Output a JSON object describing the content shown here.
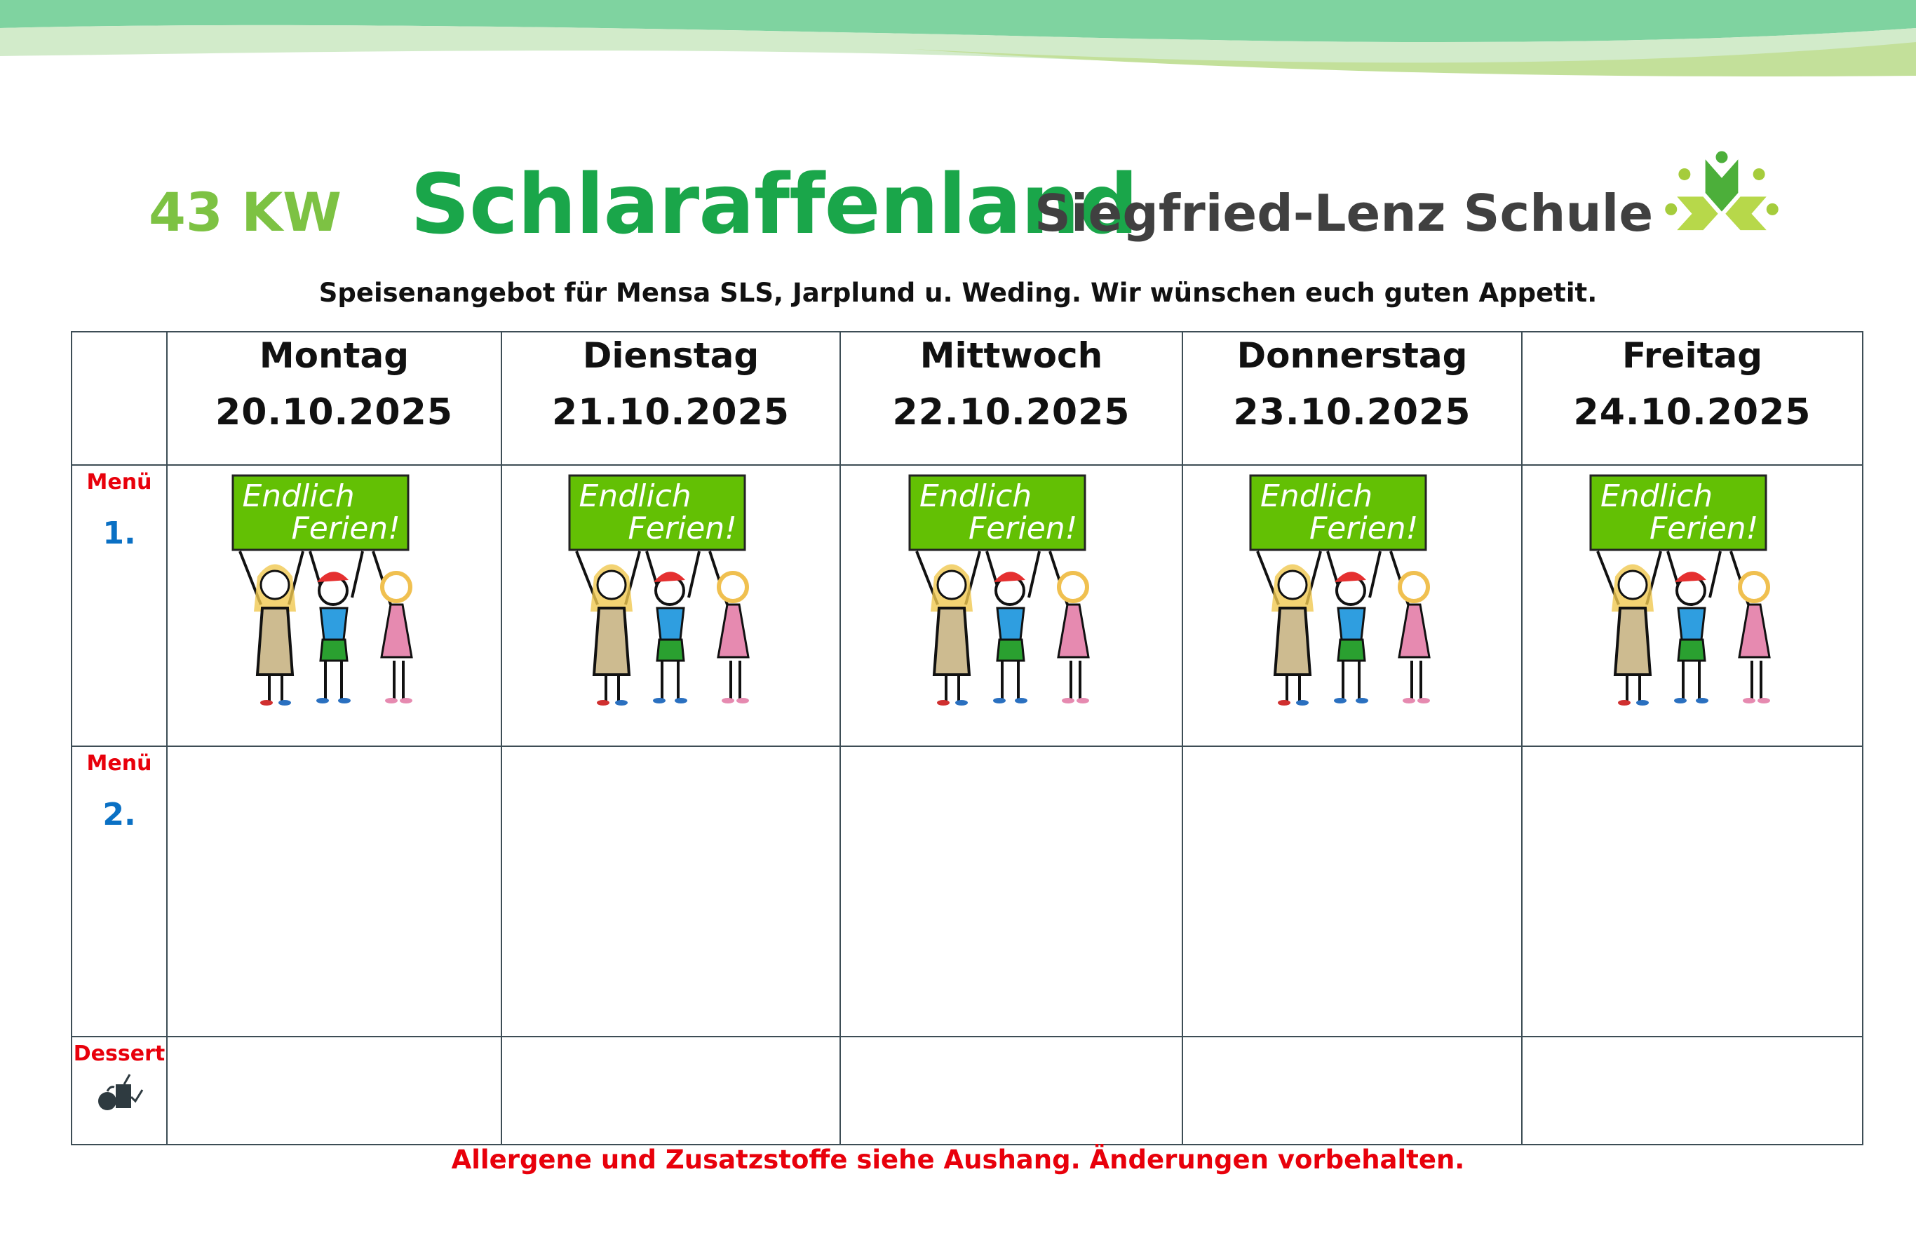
{
  "header": {
    "week": "43 KW",
    "title": "Schlaraffenland",
    "school": "Siegfried-Lenz Schule",
    "subtitle": "Speisenangebot für Mensa SLS, Jarplund u. Weding. Wir wünschen euch guten Appetit."
  },
  "days": [
    {
      "name": "Montag",
      "date": "20.10.2025"
    },
    {
      "name": "Dienstag",
      "date": "21.10.2025"
    },
    {
      "name": "Mittwoch",
      "date": "22.10.2025"
    },
    {
      "name": "Donnerstag",
      "date": "23.10.2025"
    },
    {
      "name": "Freitag",
      "date": "24.10.2025"
    }
  ],
  "rows": {
    "menu1": {
      "label": "Menü",
      "number": "1."
    },
    "menu2": {
      "label": "Menü",
      "number": "2."
    },
    "dessert": {
      "label": "Dessert",
      "icon": "dessert-icon"
    }
  },
  "menu1_image": {
    "sign_line1": "Endlich",
    "sign_line2": "Ferien!"
  },
  "footer": "Allergene und Zusatzstoffe siehe Aushang. Änderungen vorbehalten.",
  "colors": {
    "title": "#1aa64a",
    "week": "#7dc243",
    "label_red": "#e8000b",
    "number_blue": "#0a70c4"
  }
}
